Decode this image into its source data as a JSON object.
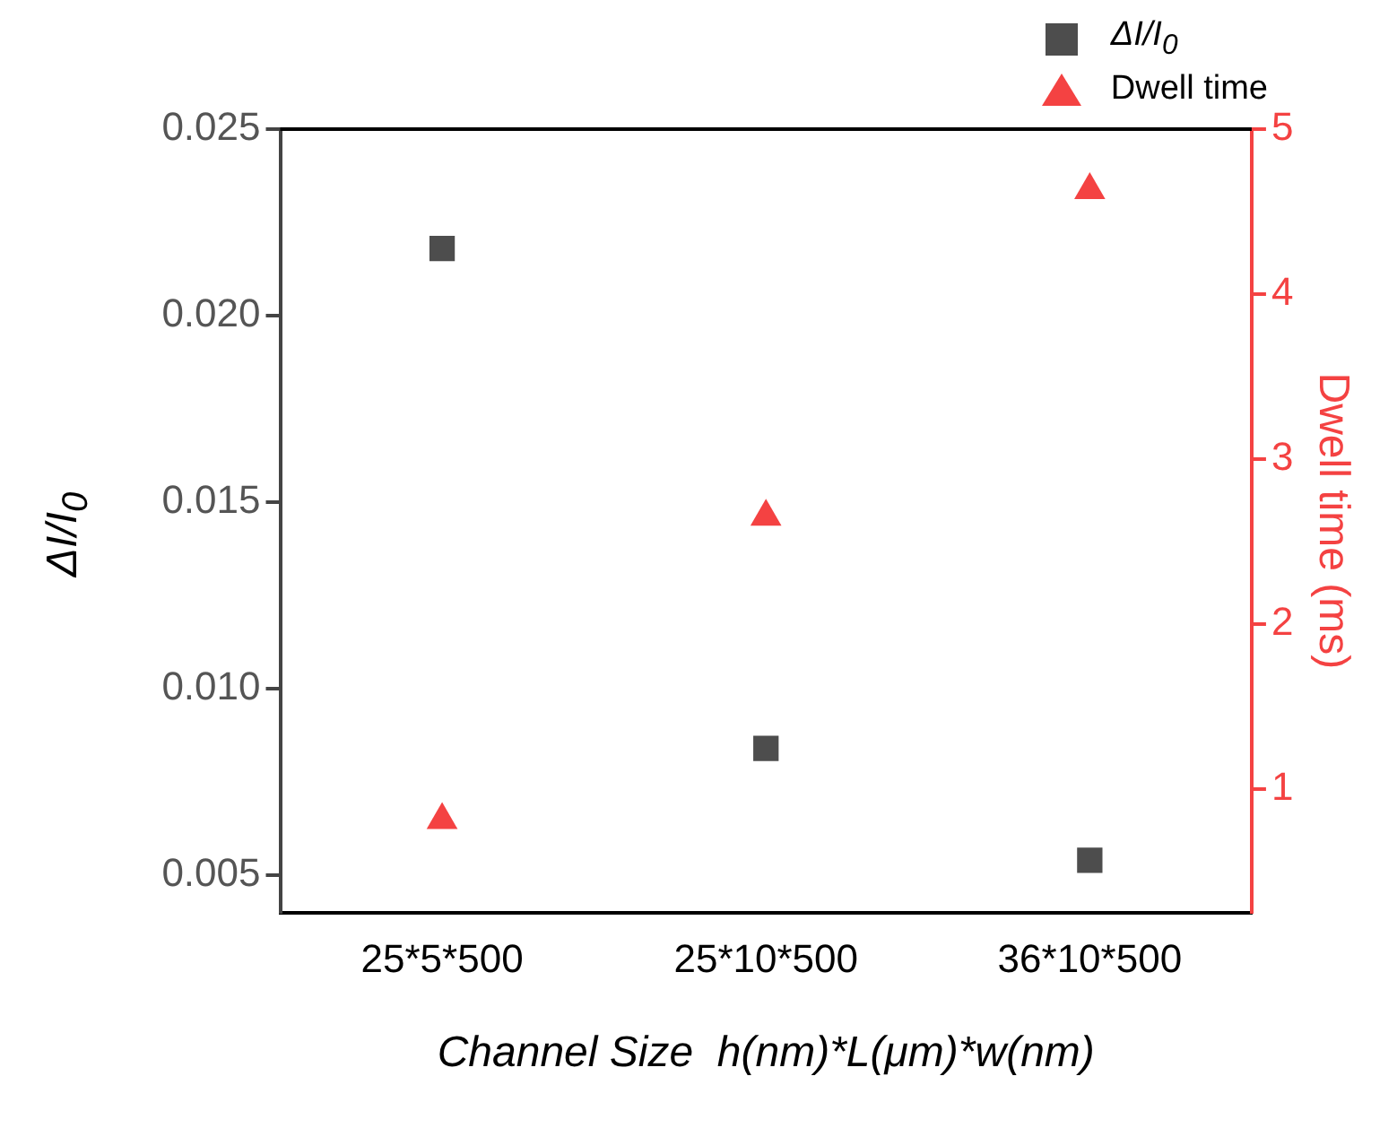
{
  "chart_data": {
    "type": "scatter",
    "xlabel": "Channel Size  h(nm)*L(μm)*w(nm)",
    "ylabel": "ΔI/I$_{0}$",
    "y2label": "Dwell time (ms)",
    "categories": [
      "25*5*500",
      "25*10*500",
      "36*10*500"
    ],
    "series": [
      {
        "name": "ΔI/I$_{0}$",
        "color": "#4d4d4d",
        "marker": "square",
        "values": [
          0.0218,
          0.0084,
          0.0054
        ]
      },
      {
        "name": "Dwell time",
        "color": "#f44242",
        "marker": "triangle",
        "axis": "y2",
        "values": [
          0.81,
          2.65,
          4.63
        ]
      }
    ],
    "ylim": [
      0.004,
      0.025
    ],
    "yticks": [
      {
        "value": 0.005,
        "label": "0.005"
      },
      {
        "value": 0.01,
        "label": "0.010"
      },
      {
        "value": 0.015,
        "label": "0.015"
      },
      {
        "value": 0.02,
        "label": "0.020"
      },
      {
        "value": 0.025,
        "label": "0.025"
      }
    ],
    "y2lim": [
      0.25,
      5
    ],
    "y2ticks": [
      1,
      2,
      3,
      4,
      5
    ],
    "grid": false,
    "legend": "top right"
  }
}
